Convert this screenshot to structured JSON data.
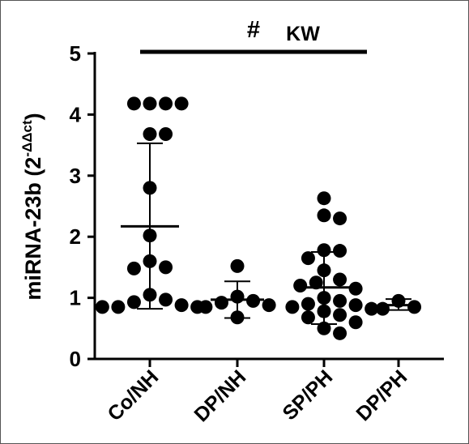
{
  "chart_data": {
    "type": "scatter",
    "title": "",
    "ylabel": "miRNA-23b (2",
    "ylabel_superscript": "-ΔΔct",
    "ylabel_close": ")",
    "ylim": [
      0,
      5
    ],
    "yticks": [
      "0",
      "1",
      "2",
      "3",
      "4",
      "5"
    ],
    "categories": [
      "Co/NH",
      "DP/NH",
      "SP/PH",
      "DP/PH"
    ],
    "groups": [
      {
        "category": "Co/NH",
        "mean": 2.17,
        "sd_low": 0.82,
        "sd_high": 3.53,
        "points": [
          4.18,
          4.18,
          4.18,
          4.18,
          3.68,
          3.68,
          2.8,
          2.02,
          1.6,
          1.5,
          1.48,
          1.05,
          0.97,
          0.93,
          0.88,
          0.85,
          0.85,
          0.85
        ]
      },
      {
        "category": "DP/NH",
        "mean": 0.97,
        "sd_low": 0.67,
        "sd_high": 1.27,
        "points": [
          1.52,
          1.02,
          0.95,
          0.92,
          0.88,
          0.85,
          0.68
        ]
      },
      {
        "category": "SP/PH",
        "mean": 1.17,
        "sd_low": 0.57,
        "sd_high": 1.75,
        "points": [
          2.63,
          2.35,
          2.3,
          1.78,
          1.77,
          1.65,
          1.45,
          1.3,
          1.25,
          1.2,
          1.15,
          1.0,
          0.95,
          0.9,
          0.88,
          0.85,
          0.82,
          0.78,
          0.72,
          0.68,
          0.6,
          0.5,
          0.42
        ]
      },
      {
        "category": "DP/PH",
        "mean": 0.88,
        "sd_low": 0.8,
        "sd_high": 0.98,
        "points": [
          0.95,
          0.85,
          0.82
        ]
      }
    ],
    "significance": {
      "symbol": "#",
      "label": "KW",
      "from": "Co/NH",
      "to": "SP/PH"
    }
  }
}
